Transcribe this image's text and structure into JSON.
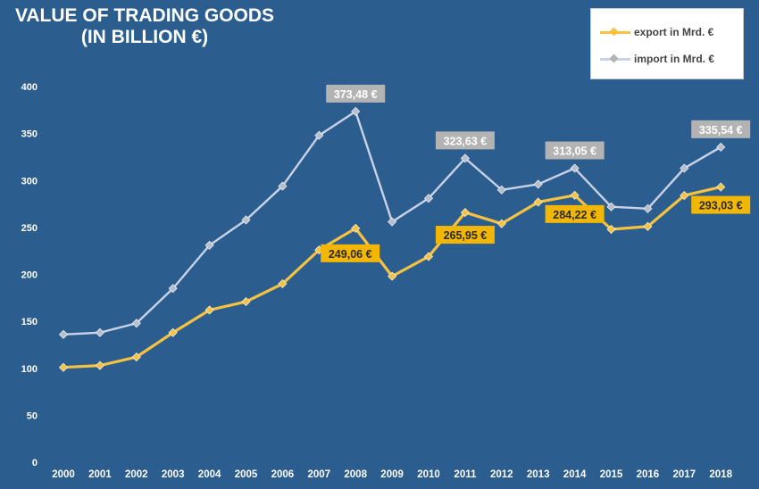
{
  "title": {
    "line1": "VALUE OF TRADING GOODS",
    "line2": "(IN BILLION €)"
  },
  "legend": {
    "export_label": "export in Mrd. €",
    "import_label": "import in Mrd. €"
  },
  "colors": {
    "background": "#2b5d8e",
    "export": "#f5c242",
    "import": "#c9d2e6",
    "export_label_bg": "#f2b705",
    "import_label_bg": "#b3b3b3",
    "grid": "#e6edf5",
    "axis_text": "#ffffff"
  },
  "chart_data": {
    "type": "line",
    "title": "VALUE OF TRADING GOODS (IN BILLION €)",
    "categories": [
      "2000",
      "2001",
      "2002",
      "2003",
      "2004",
      "2005",
      "2006",
      "2007",
      "2008",
      "2009",
      "2010",
      "2011",
      "2012",
      "2013",
      "2014",
      "2015",
      "2016",
      "2017",
      "2018"
    ],
    "ylim": [
      0,
      400
    ],
    "yticks": [
      0,
      50,
      100,
      150,
      200,
      250,
      300,
      350,
      400
    ],
    "grid": "vertical lines at each category",
    "legend_position": "top-right",
    "series": [
      {
        "name": "export in Mrd. €",
        "values": [
          101,
          103,
          112,
          138,
          162,
          171,
          190,
          226,
          249.06,
          198,
          219,
          265.95,
          254,
          277,
          284.22,
          248,
          251,
          284,
          293.03
        ]
      },
      {
        "name": "import in Mrd. €",
        "values": [
          136,
          138,
          148,
          185,
          231,
          258,
          294,
          348,
          373.48,
          256,
          281,
          323.63,
          290,
          296,
          313.05,
          272,
          270,
          313,
          335.54
        ]
      }
    ],
    "annotations": [
      {
        "series": 1,
        "index": 8,
        "text": "373,48 €"
      },
      {
        "series": 1,
        "index": 11,
        "text": "323,63 €"
      },
      {
        "series": 1,
        "index": 14,
        "text": "313,05 €"
      },
      {
        "series": 1,
        "index": 18,
        "text": "335,54 €"
      },
      {
        "series": 0,
        "index": 8,
        "text": "249,06 €"
      },
      {
        "series": 0,
        "index": 11,
        "text": "265,95 €"
      },
      {
        "series": 0,
        "index": 14,
        "text": "284,22 €"
      },
      {
        "series": 0,
        "index": 18,
        "text": "293,03 €"
      }
    ]
  }
}
